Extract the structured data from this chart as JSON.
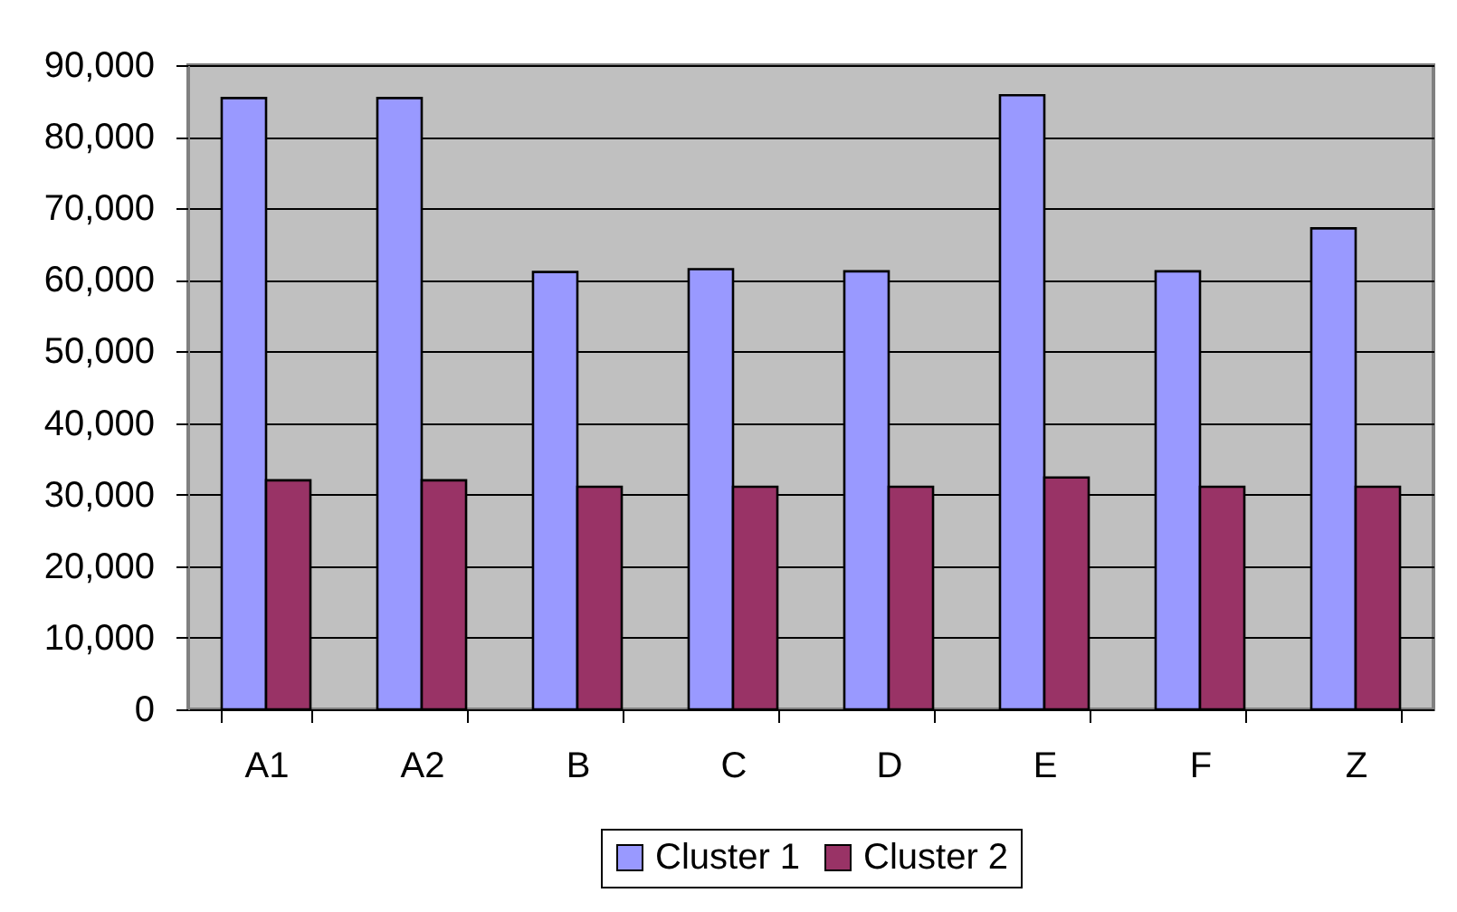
{
  "chart_data": {
    "type": "bar",
    "categories": [
      "A1",
      "A2",
      "B",
      "C",
      "D",
      "E",
      "F",
      "Z"
    ],
    "series": [
      {
        "name": "Cluster 1",
        "color": "#9999ff",
        "values": [
          85400,
          85400,
          61100,
          61500,
          61200,
          85800,
          61200,
          67200
        ]
      },
      {
        "name": "Cluster 2",
        "color": "#993366",
        "values": [
          32000,
          32000,
          31100,
          31100,
          31100,
          32400,
          31100,
          31100
        ]
      }
    ],
    "ylim": [
      0,
      90000
    ],
    "yticks": [
      0,
      {
        "value": 10000,
        "label": "10,000"
      },
      {
        "value": 20000,
        "label": "20,000"
      },
      {
        "value": 30000,
        "label": "30,000"
      },
      {
        "value": 40000,
        "label": "40,000"
      },
      {
        "value": 50000,
        "label": "50,000"
      },
      {
        "value": 60000,
        "label": "60,000"
      },
      {
        "value": 70000,
        "label": "70,000"
      },
      {
        "value": 80000,
        "label": "80,000"
      },
      {
        "value": 90000,
        "label": "90,000"
      }
    ],
    "grid": "y",
    "legend": "bottom"
  }
}
